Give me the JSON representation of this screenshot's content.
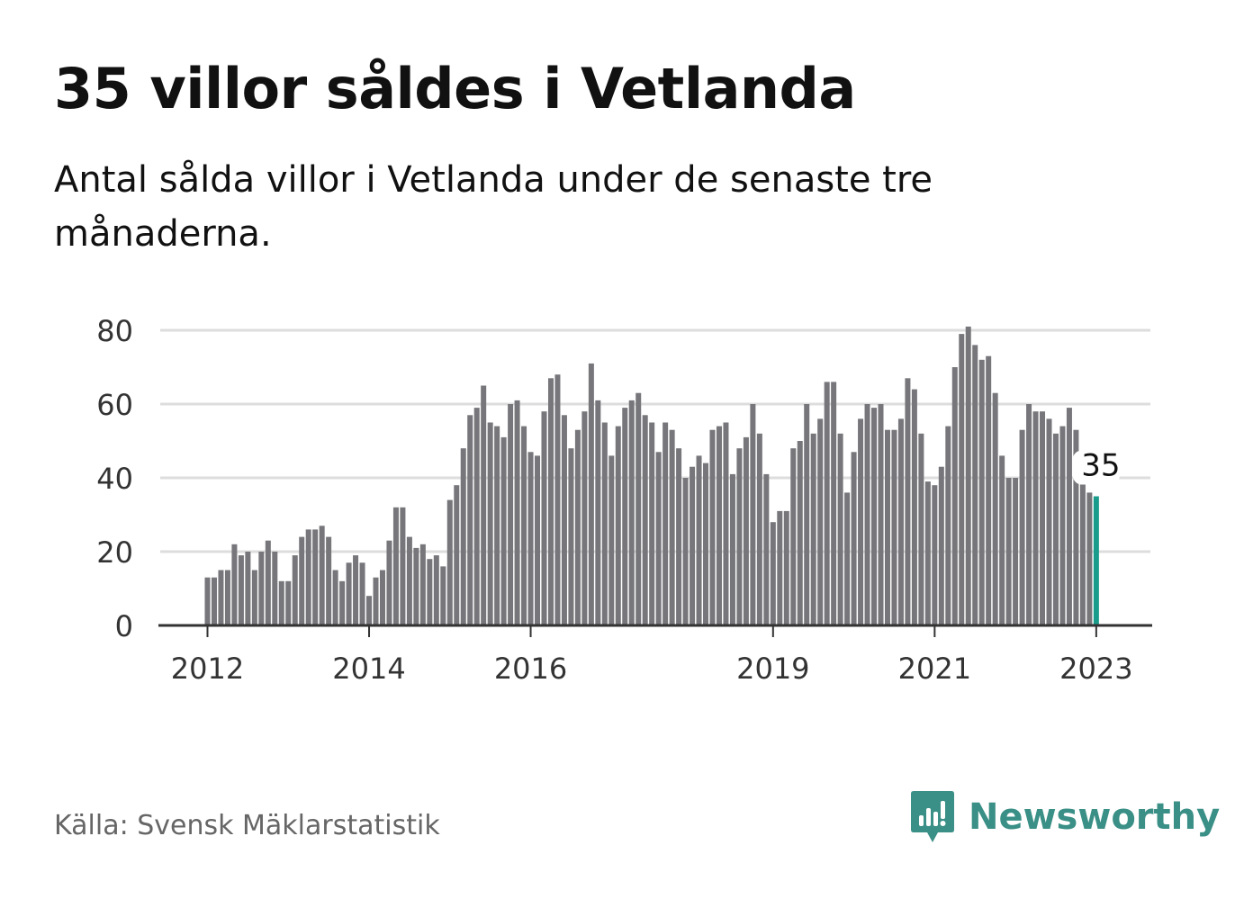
{
  "header": {
    "title": "35 villor såldes i Vetlanda",
    "subtitle": "Antal sålda villor i Vetlanda under de senaste tre månaderna."
  },
  "footer": {
    "source": "Källa: Svensk Mäklarstatistik",
    "brand": "Newsworthy"
  },
  "colors": {
    "bar": "#76767b",
    "highlight": "#1a9c8c",
    "grid": "#dddddd",
    "axis": "#333333",
    "brand": "#3a8f86"
  },
  "chart_data": {
    "type": "bar",
    "title": "35 villor såldes i Vetlanda",
    "xlabel": "",
    "ylabel": "",
    "ylim": [
      0,
      80
    ],
    "yticks": [
      0,
      20,
      40,
      60,
      80
    ],
    "grid": true,
    "xtick_labels": [
      {
        "label": "2012",
        "index": 0
      },
      {
        "label": "2014",
        "index": 24
      },
      {
        "label": "2016",
        "index": 48
      },
      {
        "label": "2019",
        "index": 84
      },
      {
        "label": "2021",
        "index": 108
      },
      {
        "label": "2023",
        "index": 132
      }
    ],
    "start": "2012-01",
    "values": [
      13,
      13,
      15,
      15,
      22,
      19,
      20,
      15,
      20,
      23,
      20,
      12,
      12,
      19,
      24,
      26,
      26,
      27,
      24,
      15,
      12,
      17,
      19,
      17,
      8,
      13,
      15,
      23,
      32,
      32,
      24,
      21,
      22,
      18,
      19,
      16,
      34,
      38,
      48,
      57,
      59,
      65,
      55,
      54,
      51,
      60,
      61,
      54,
      47,
      46,
      58,
      67,
      68,
      57,
      48,
      53,
      58,
      71,
      61,
      55,
      46,
      54,
      59,
      61,
      63,
      57,
      55,
      47,
      55,
      53,
      48,
      40,
      43,
      46,
      44,
      53,
      54,
      55,
      41,
      48,
      51,
      60,
      52,
      41,
      28,
      31,
      31,
      48,
      50,
      60,
      52,
      56,
      66,
      66,
      52,
      36,
      47,
      56,
      60,
      59,
      60,
      53,
      53,
      56,
      67,
      64,
      52,
      39,
      38,
      43,
      54,
      70,
      79,
      81,
      76,
      72,
      73,
      63,
      46,
      40,
      40,
      53,
      60,
      58,
      58,
      56,
      52,
      54,
      59,
      53,
      39,
      36,
      35
    ],
    "highlight_index": 132,
    "annotation": "35"
  }
}
